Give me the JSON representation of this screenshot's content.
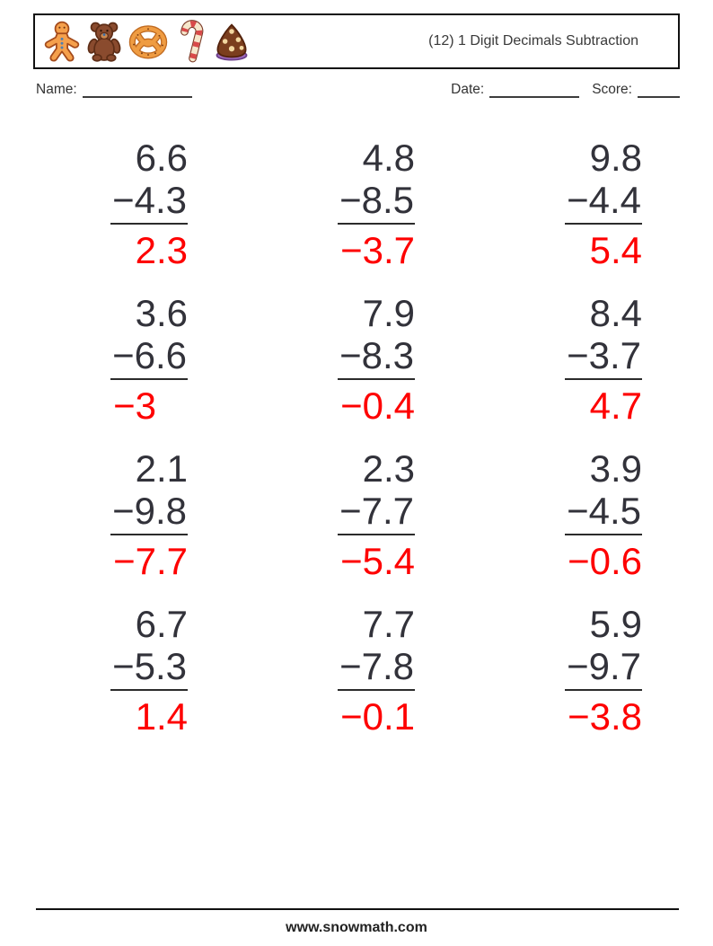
{
  "header": {
    "title": "(12) 1 Digit Decimals Subtraction",
    "icons": [
      "gingerbread-man",
      "teddy-bear",
      "pretzel",
      "candy-cane",
      "chocolate-drop"
    ]
  },
  "fields": {
    "name_label": "Name:",
    "date_label": "Date:",
    "score_label": "Score:"
  },
  "problems": [
    {
      "minuend": "6.6",
      "subtrahend": "−4.3",
      "answer": "2.3"
    },
    {
      "minuend": "4.8",
      "subtrahend": "−8.5",
      "answer": "−3.7"
    },
    {
      "minuend": "9.8",
      "subtrahend": "−4.4",
      "answer": "5.4"
    },
    {
      "minuend": "3.6",
      "subtrahend": "−6.6",
      "answer": "−3"
    },
    {
      "minuend": "7.9",
      "subtrahend": "−8.3",
      "answer": "−0.4"
    },
    {
      "minuend": "8.4",
      "subtrahend": "−3.7",
      "answer": "4.7"
    },
    {
      "minuend": "2.1",
      "subtrahend": "−9.8",
      "answer": "−7.7"
    },
    {
      "minuend": "2.3",
      "subtrahend": "−7.7",
      "answer": "−5.4"
    },
    {
      "minuend": "3.9",
      "subtrahend": "−4.5",
      "answer": "−0.6"
    },
    {
      "minuend": "6.7",
      "subtrahend": "−5.3",
      "answer": "1.4"
    },
    {
      "minuend": "7.7",
      "subtrahend": "−7.8",
      "answer": "−0.1"
    },
    {
      "minuend": "5.9",
      "subtrahend": "−9.7",
      "answer": "−3.8"
    }
  ],
  "footer": {
    "website": "www.snowmath.com"
  },
  "colors": {
    "answer_red": "#fe0000",
    "number_dark": "#32323a",
    "border_black": "#111111"
  }
}
